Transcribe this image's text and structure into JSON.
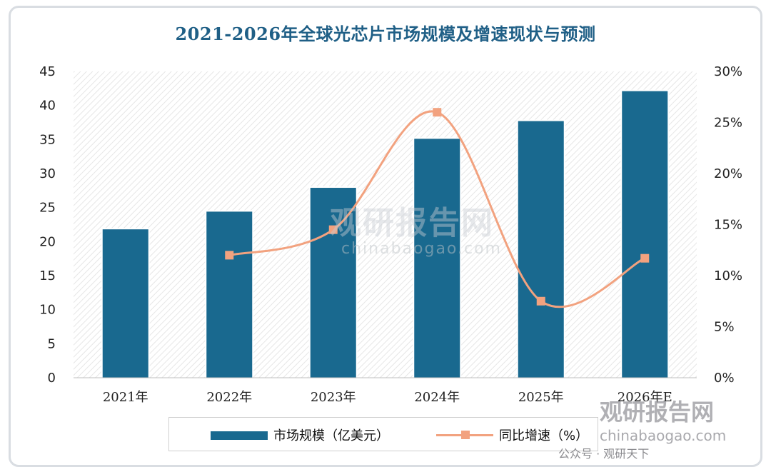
{
  "chart_data": {
    "type": "bar",
    "title": "2021-2026年全球光芯片市场规模及增速现状与预测",
    "categories": [
      "2021年",
      "2022年",
      "2023年",
      "2024年",
      "2025年",
      "2026年E"
    ],
    "series": [
      {
        "name": "市场规模（亿美元）",
        "type": "bar",
        "axis": "left",
        "color": "#19698f",
        "values": [
          21.8,
          24.4,
          27.9,
          35.1,
          37.7,
          42.1
        ]
      },
      {
        "name": "同比增速（%）",
        "type": "line",
        "axis": "right",
        "color": "#f2a27f",
        "values": [
          null,
          12.0,
          14.5,
          26.0,
          7.5,
          11.7
        ]
      }
    ],
    "y_left": {
      "ylim": [
        0,
        45
      ],
      "ticks": [
        "0",
        "5",
        "10",
        "15",
        "20",
        "25",
        "30",
        "35",
        "40",
        "45"
      ]
    },
    "y_right": {
      "ylim": [
        0,
        30
      ],
      "ticks": [
        "0%",
        "5%",
        "10%",
        "15%",
        "20%",
        "25%",
        "30%"
      ]
    },
    "grid": false,
    "legend_position": "bottom"
  },
  "legend": {
    "bar_label": "市场规模（亿美元）",
    "line_label": "同比增速（%）"
  },
  "watermark": {
    "brand": "观研报告网",
    "url": "chinabaogao.com",
    "wechat": "公众号 · 观研天下"
  }
}
